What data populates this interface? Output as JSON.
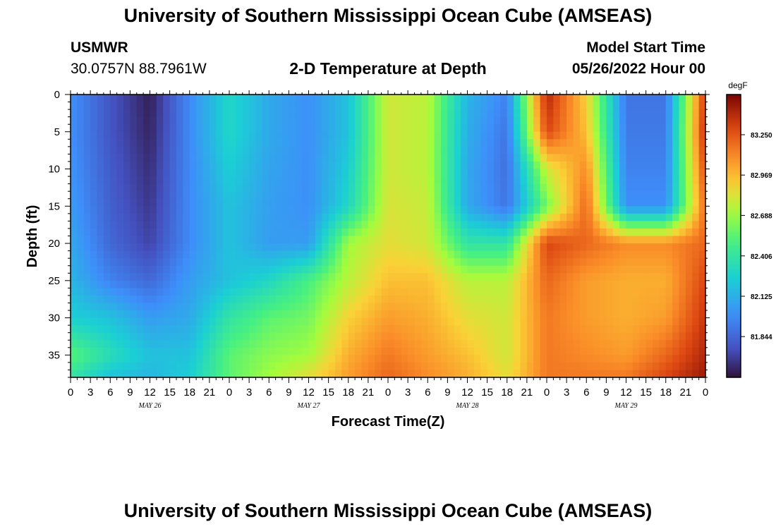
{
  "header": {
    "title": "University of Southern Mississippi Ocean Cube (AMSEAS)",
    "station_id": "USMWR",
    "station_coords": "30.0757N  88.7961W",
    "plot_title": "2-D Temperature at Depth",
    "model_start_label": "Model Start Time",
    "model_start_value": "05/26/2022 Hour 00"
  },
  "footer": {
    "title": "University of Southern Mississippi Ocean Cube (AMSEAS)"
  },
  "chart_data": {
    "type": "heatmap",
    "xlabel": "Forecast Time(Z)",
    "ylabel": "Depth (ft)",
    "x_unit": "hours since 05/26/2022 00Z",
    "xlim": [
      0,
      96
    ],
    "ylim": [
      0,
      38
    ],
    "y_inverted": true,
    "x_tick_labels": [
      "0",
      "3",
      "6",
      "9",
      "12",
      "15",
      "18",
      "21",
      "0",
      "3",
      "6",
      "9",
      "12",
      "15",
      "18",
      "21",
      "0",
      "3",
      "6",
      "9",
      "12",
      "15",
      "18",
      "21",
      "0",
      "3",
      "6",
      "9",
      "12",
      "15",
      "18",
      "21",
      "0"
    ],
    "day_labels": [
      {
        "label": "MAY 26",
        "hour": 12
      },
      {
        "label": "MAY 27",
        "hour": 36
      },
      {
        "label": "MAY 28",
        "hour": 60
      },
      {
        "label": "MAY 29",
        "hour": 84
      }
    ],
    "y_ticks": [
      0,
      5,
      10,
      15,
      20,
      25,
      30,
      35
    ],
    "colorbar": {
      "unit": "degF",
      "range": [
        81.56,
        83.53
      ],
      "tick_labels": [
        "83.250",
        "82.969",
        "82.688",
        "82.406",
        "82.125",
        "81.844"
      ],
      "tick_values": [
        83.25,
        82.969,
        82.688,
        82.406,
        82.125,
        81.844
      ]
    },
    "grid": false,
    "x": [
      0,
      6,
      12,
      18,
      24,
      30,
      36,
      42,
      48,
      54,
      60,
      66,
      72,
      78,
      84,
      90,
      96
    ],
    "depths": [
      0,
      5,
      10,
      15,
      20,
      25,
      30,
      35,
      38
    ],
    "z": [
      [
        82.0,
        81.78,
        81.6,
        81.98,
        82.3,
        82.1,
        82.0,
        82.2,
        82.8,
        82.75,
        82.15,
        81.95,
        83.4,
        82.9,
        81.9,
        81.9,
        83.35
      ],
      [
        82.0,
        81.78,
        81.62,
        81.98,
        82.3,
        82.1,
        82.0,
        82.2,
        82.8,
        82.75,
        82.12,
        81.9,
        83.3,
        82.95,
        81.92,
        81.92,
        83.4
      ],
      [
        82.02,
        81.8,
        81.65,
        81.98,
        82.25,
        82.08,
        82.0,
        82.25,
        82.8,
        82.75,
        82.1,
        81.88,
        82.8,
        83.1,
        81.95,
        81.95,
        83.3
      ],
      [
        82.05,
        81.82,
        81.68,
        81.98,
        82.2,
        82.06,
        82.0,
        82.3,
        82.82,
        82.78,
        82.1,
        81.9,
        82.6,
        83.2,
        82.0,
        82.0,
        83.2
      ],
      [
        82.1,
        81.85,
        81.72,
        81.98,
        82.2,
        82.05,
        82.05,
        82.7,
        82.85,
        82.8,
        82.4,
        82.4,
        83.3,
        83.2,
        83.1,
        83.1,
        83.2
      ],
      [
        82.15,
        81.95,
        81.85,
        82.05,
        82.2,
        82.3,
        82.5,
        82.75,
        82.95,
        82.95,
        82.75,
        82.75,
        83.2,
        83.05,
        83.0,
        83.0,
        83.3
      ],
      [
        82.25,
        82.2,
        82.05,
        82.1,
        82.4,
        82.55,
        82.6,
        82.9,
        83.05,
        83.0,
        82.85,
        82.8,
        83.15,
        83.05,
        83.0,
        83.05,
        83.35
      ],
      [
        82.55,
        82.35,
        82.2,
        82.2,
        82.55,
        82.65,
        82.7,
        83.0,
        83.15,
        83.05,
        82.95,
        82.8,
        83.15,
        83.1,
        83.05,
        83.2,
        83.4
      ],
      [
        82.4,
        82.2,
        82.15,
        82.25,
        82.55,
        82.7,
        82.85,
        83.05,
        83.2,
        83.1,
        83.0,
        82.85,
        83.15,
        83.15,
        83.15,
        83.3,
        83.45
      ]
    ]
  }
}
